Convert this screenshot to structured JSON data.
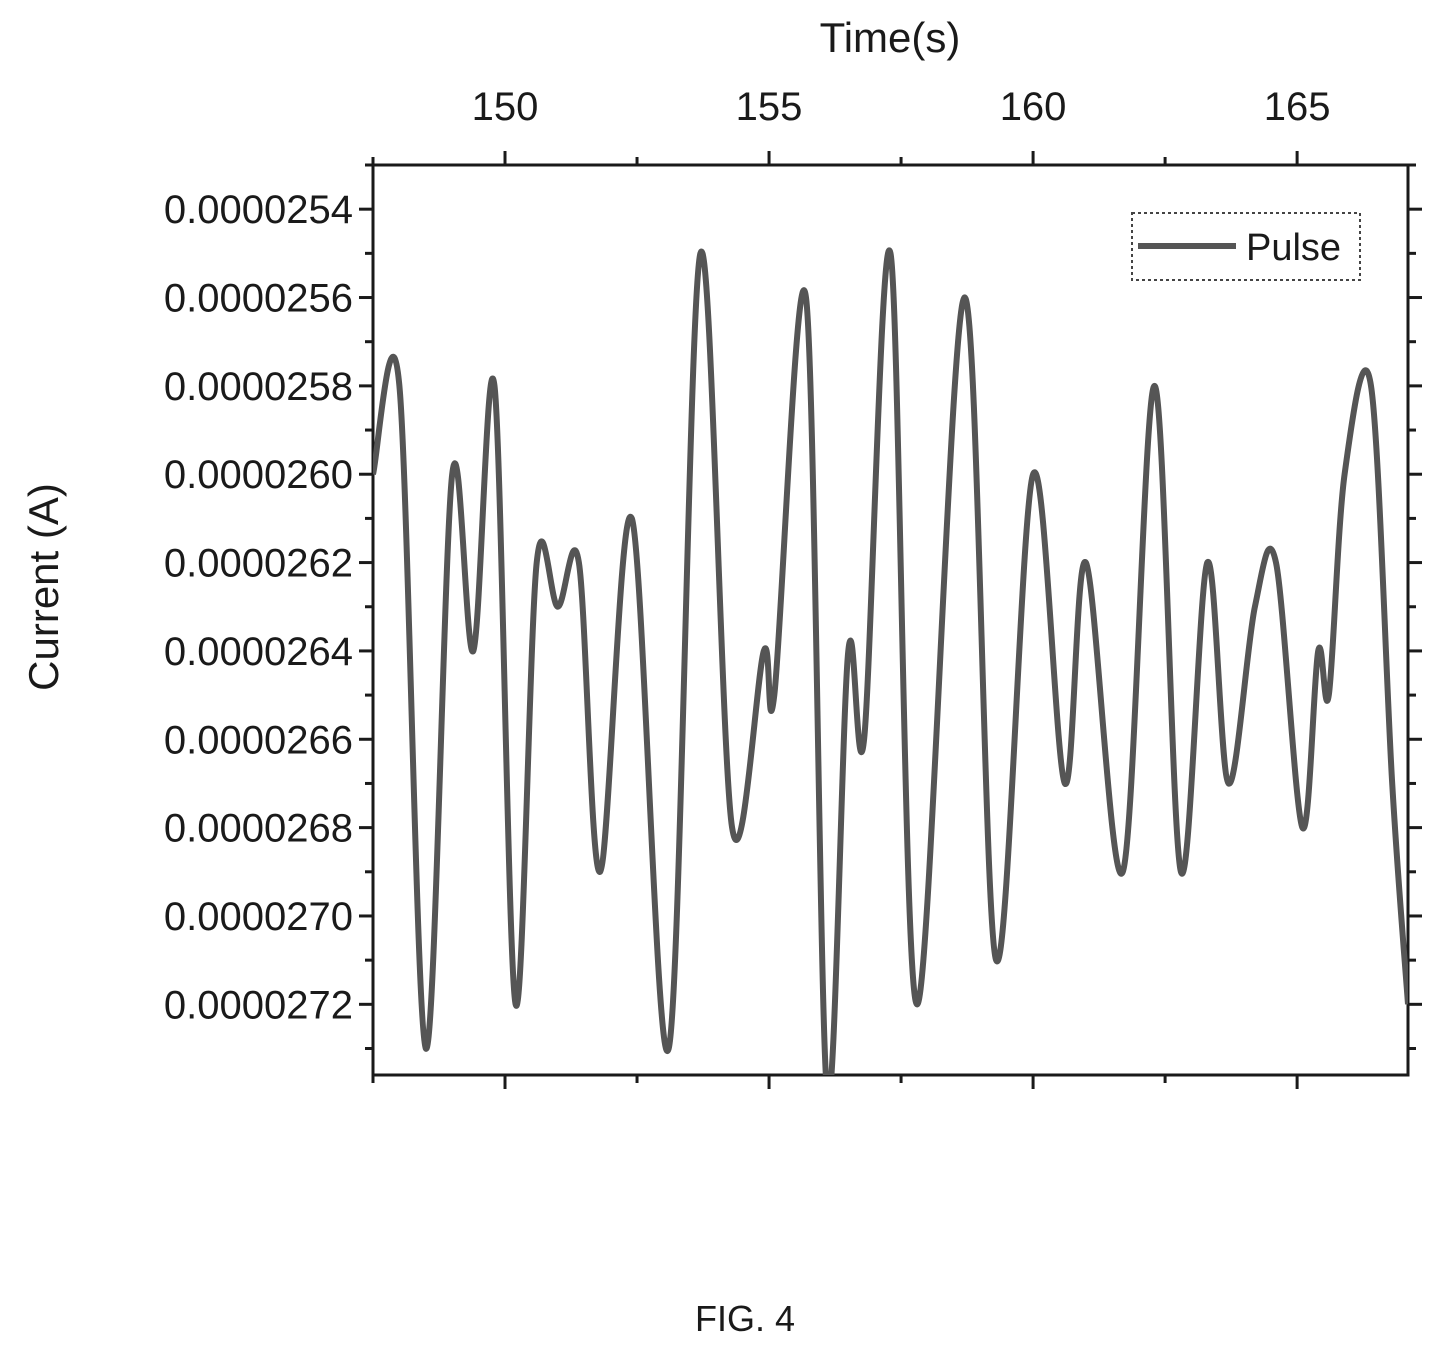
{
  "chart_data": {
    "type": "line",
    "xlabel": "Time(s)",
    "ylabel": "Current (A)",
    "x_axis_position": "top",
    "y_axis_inverted": true,
    "xlim": [
      147.5,
      167.1
    ],
    "ylim": [
      2.53e-05,
      2.736e-05
    ],
    "x_ticks": [
      150,
      155,
      160,
      165
    ],
    "x_tick_labels": [
      "150",
      "155",
      "160",
      "165"
    ],
    "y_ticks": [
      2.54e-05,
      2.56e-05,
      2.58e-05,
      2.6e-05,
      2.62e-05,
      2.64e-05,
      2.66e-05,
      2.68e-05,
      2.7e-05,
      2.72e-05
    ],
    "y_tick_labels": [
      "0.0000254",
      "0.0000256",
      "0.0000258",
      "0.0000260",
      "0.0000262",
      "0.0000264",
      "0.0000266",
      "0.0000268",
      "0.0000270",
      "0.0000272"
    ],
    "legend": {
      "position": "top-right"
    },
    "grid": false,
    "series": [
      {
        "name": "Pulse",
        "color": "#555555",
        "x": [
          147.5,
          148.0,
          148.5,
          149.0,
          149.4,
          149.8,
          150.2,
          150.6,
          151.0,
          151.4,
          151.8,
          152.4,
          153.1,
          153.7,
          154.3,
          154.9,
          155.1,
          155.7,
          156.1,
          156.5,
          156.8,
          157.3,
          157.8,
          158.7,
          159.3,
          160.0,
          160.6,
          161.0,
          161.7,
          162.3,
          162.8,
          163.3,
          163.7,
          164.2,
          164.6,
          165.1,
          165.4,
          165.6,
          165.9,
          166.4,
          166.8,
          167.1
        ],
        "y": [
          2.6e-05,
          2.58e-05,
          2.73e-05,
          2.6e-05,
          2.64e-05,
          2.58e-05,
          2.72e-05,
          2.62e-05,
          2.63e-05,
          2.62e-05,
          2.69e-05,
          2.61e-05,
          2.73e-05,
          2.55e-05,
          2.68e-05,
          2.64e-05,
          2.65e-05,
          2.56e-05,
          2.74e-05,
          2.64e-05,
          2.66e-05,
          2.55e-05,
          2.72e-05,
          2.56e-05,
          2.71e-05,
          2.6e-05,
          2.67e-05,
          2.62e-05,
          2.69e-05,
          2.58e-05,
          2.69e-05,
          2.62e-05,
          2.67e-05,
          2.63e-05,
          2.62e-05,
          2.68e-05,
          2.64e-05,
          2.65e-05,
          2.6e-05,
          2.58e-05,
          2.67e-05,
          2.72e-05
        ]
      }
    ]
  },
  "figure": {
    "caption": "FIG. 4"
  }
}
